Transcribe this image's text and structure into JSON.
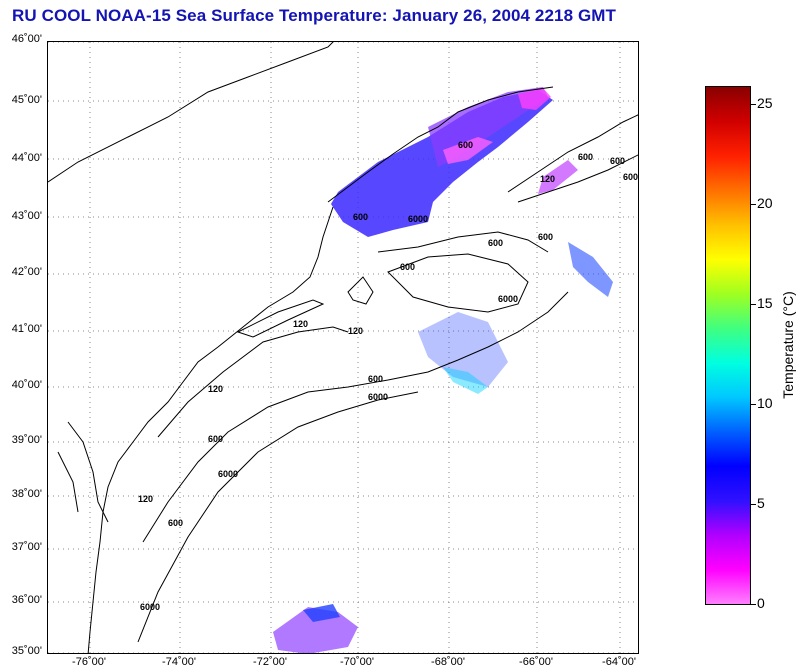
{
  "title": "RU COOL  NOAA-15  Sea Surface Temperature:  January 26, 2004 2218 GMT",
  "map": {
    "lat_labels": [
      "46˚00'",
      "45˚00'",
      "44˚00'",
      "43˚00'",
      "42˚00'",
      "41˚00'",
      "40˚00'",
      "39˚00'",
      "38˚00'",
      "37˚00'",
      "36˚00'",
      "35˚00'"
    ],
    "lon_labels": [
      "-76˚00'",
      "-74˚00'",
      "-72˚00'",
      "-70˚00'",
      "-68˚00'",
      "-66˚00'",
      "-64˚00'"
    ],
    "contour_labels": [
      "600",
      "600",
      "600",
      "600",
      "120",
      "600",
      "6000",
      "600",
      "600",
      "6000",
      "120",
      "120",
      "120",
      "600",
      "6000",
      "600",
      "6000",
      "120",
      "600",
      "6000",
      "600"
    ]
  },
  "colorbar": {
    "title": "Temperature (°C)",
    "ticks": [
      "25",
      "20",
      "15",
      "10",
      "5",
      "0"
    ],
    "range": [
      0,
      26
    ],
    "colors": [
      "#ff80ff",
      "#ff00ff",
      "#b000ff",
      "#3010ff",
      "#0000ff",
      "#0060ff",
      "#00c8ff",
      "#00ffe0",
      "#40ff80",
      "#a0ff20",
      "#ffff00",
      "#ffc000",
      "#ff7000",
      "#ff2000",
      "#d00000",
      "#8a0000"
    ]
  }
}
